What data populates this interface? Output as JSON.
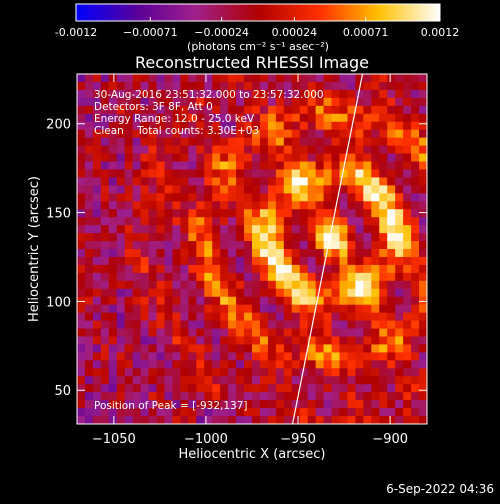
{
  "chart_data": {
    "type": "heatmap",
    "title": "Reconstructed RHESSI Image",
    "xlabel": "Heliocentric X (arcsec)",
    "ylabel": "Heliocentric Y (arcsec)",
    "xlim": [
      -1070,
      -880
    ],
    "ylim": [
      31,
      228
    ],
    "x_ticks": [
      -1050,
      -1000,
      -950,
      -900
    ],
    "y_ticks": [
      50,
      100,
      150,
      200
    ],
    "grid": false,
    "colorscale": "hot",
    "colorbar": {
      "range": [
        -0.0012,
        0.0012
      ],
      "ticks": [
        "-0.0012",
        "−0.00071",
        "−0.00024",
        "0.00024",
        "0.00071",
        "0.0012"
      ],
      "tick_values": [
        -0.0012,
        -0.00071,
        -0.00024,
        0.00024,
        0.00071,
        0.0012
      ],
      "units": "(photons cm⁻² s⁻¹ asec⁻²)"
    },
    "peak": {
      "x": -932,
      "y": 137
    },
    "limb_line": [
      [
        -953,
        31
      ],
      [
        -915,
        228
      ]
    ],
    "annotations": [
      "30-Aug-2016 23:51:32.000 to 23:57:32.000",
      "Detectors: 3F 8F, Att 0",
      "Energy Range: 12.0 - 25.0 keV",
      "Clean    Total counts: 3.30E+03",
      "Position of Peak = [-932,137]"
    ],
    "x_tick_labels": [
      "−1050",
      "−1000",
      "−950",
      "−900"
    ],
    "y_tick_labels": [
      "50",
      "100",
      "150",
      "200"
    ]
  },
  "footer": {
    "timestamp": "6-Sep-2022 04:36"
  }
}
